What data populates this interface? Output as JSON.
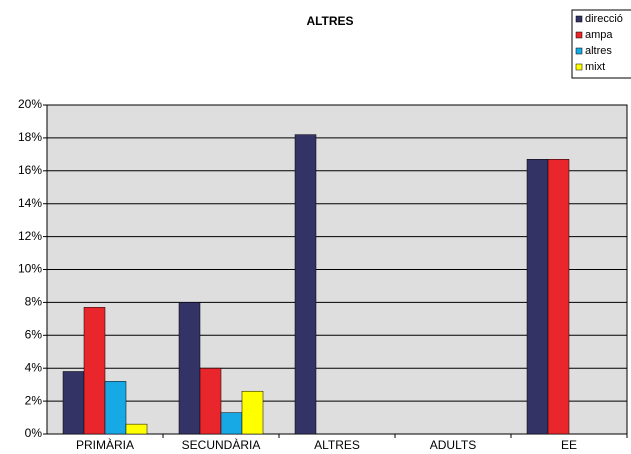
{
  "chart_data": {
    "type": "bar",
    "title": "ALTRES",
    "categories": [
      "PRIMÀRIA",
      "SECUNDÀRIA",
      "ALTRES",
      "ADULTS",
      "EE"
    ],
    "series": [
      {
        "name": "direcció",
        "color": "#333366",
        "values": [
          3.8,
          8.0,
          18.2,
          0,
          16.7
        ]
      },
      {
        "name": "ampa",
        "color": "#e8262b",
        "values": [
          7.7,
          4.0,
          0,
          0,
          16.7
        ]
      },
      {
        "name": "altres",
        "color": "#17a9e6",
        "values": [
          3.2,
          1.3,
          0,
          0,
          0
        ]
      },
      {
        "name": "mixt",
        "color": "#ffff00",
        "values": [
          0.6,
          2.6,
          0,
          0,
          0
        ]
      }
    ],
    "ylim": [
      0,
      20
    ],
    "yticks": [
      {
        "value": 0,
        "label": "0%"
      },
      {
        "value": 2,
        "label": "2%"
      },
      {
        "value": 4,
        "label": "4%"
      },
      {
        "value": 6,
        "label": "6%"
      },
      {
        "value": 8,
        "label": "8%"
      },
      {
        "value": 10,
        "label": "10%"
      },
      {
        "value": 12,
        "label": "12%"
      },
      {
        "value": 14,
        "label": "14%"
      },
      {
        "value": 16,
        "label": "16%"
      },
      {
        "value": 18,
        "label": "18%"
      },
      {
        "value": 20,
        "label": "20%"
      }
    ],
    "grid": true,
    "legend": "top-right"
  }
}
